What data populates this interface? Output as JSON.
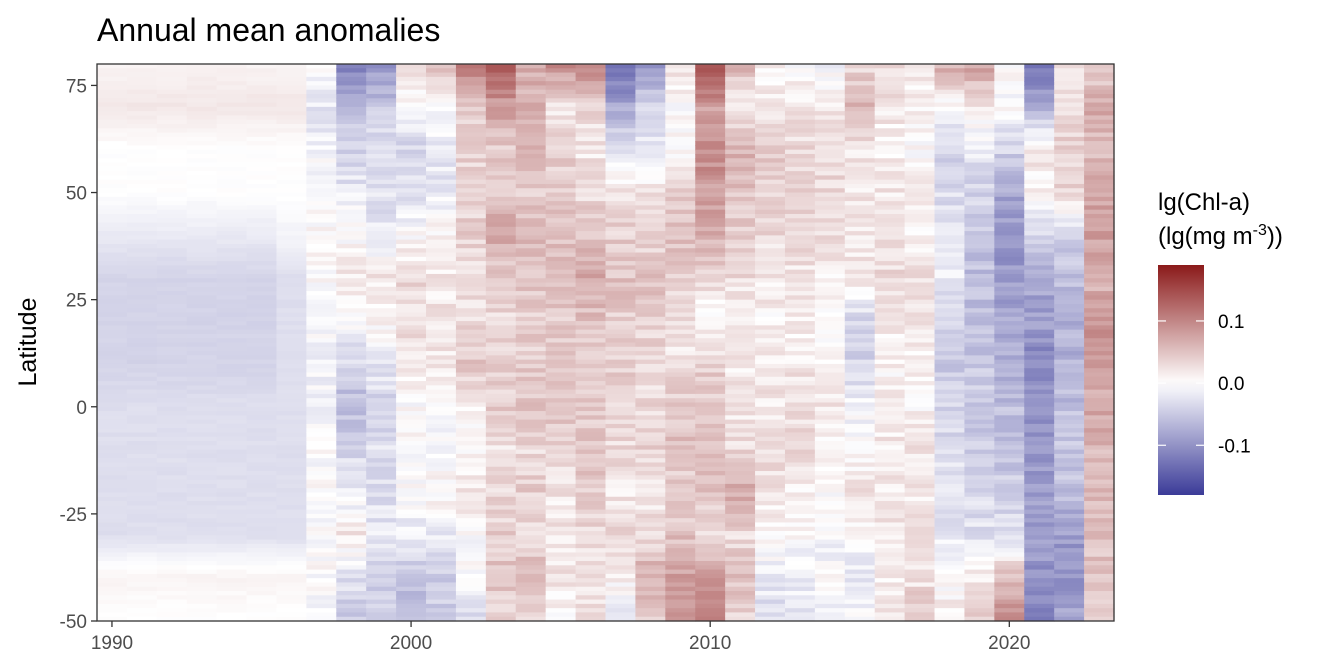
{
  "chart_data": {
    "type": "heatmap",
    "title": "Annual mean anomalies",
    "xlabel": "",
    "ylabel": "Latitude",
    "x_ticks": [
      1990,
      2000,
      2010,
      2020
    ],
    "y_ticks": [
      75,
      50,
      25,
      0,
      -25,
      -50
    ],
    "xlim": [
      1989.5,
      2023.5
    ],
    "ylim": [
      -50,
      80
    ],
    "years": [
      1990,
      1991,
      1992,
      1993,
      1994,
      1995,
      1996,
      1997,
      1998,
      1999,
      2000,
      2001,
      2002,
      2003,
      2004,
      2005,
      2006,
      2007,
      2008,
      2009,
      2010,
      2011,
      2012,
      2013,
      2014,
      2015,
      2016,
      2017,
      2018,
      2019,
      2020,
      2021,
      2022,
      2023
    ],
    "latitude_bands": [
      80,
      70,
      60,
      50,
      40,
      30,
      20,
      10,
      0,
      -10,
      -20,
      -30,
      -40,
      -50
    ],
    "values_note_units": "lg(mg m-3)",
    "anomaly_rows_by_year": [
      [
        0.01,
        0.02,
        0.0,
        0.0,
        -0.02,
        -0.04,
        -0.04,
        -0.04,
        -0.03,
        -0.03,
        -0.03,
        -0.03,
        0.01,
        0.0
      ],
      [
        0.01,
        0.02,
        0.0,
        0.0,
        -0.02,
        -0.04,
        -0.04,
        -0.04,
        -0.03,
        -0.03,
        -0.03,
        -0.03,
        0.01,
        0.0
      ],
      [
        0.01,
        0.02,
        0.0,
        0.0,
        -0.02,
        -0.04,
        -0.04,
        -0.04,
        -0.03,
        -0.03,
        -0.03,
        -0.03,
        0.01,
        0.0
      ],
      [
        0.01,
        0.02,
        0.0,
        0.0,
        -0.02,
        -0.04,
        -0.04,
        -0.04,
        -0.03,
        -0.03,
        -0.03,
        -0.03,
        0.01,
        0.0
      ],
      [
        0.01,
        0.02,
        0.0,
        0.0,
        -0.02,
        -0.04,
        -0.04,
        -0.04,
        -0.03,
        -0.03,
        -0.03,
        -0.03,
        0.01,
        0.0
      ],
      [
        0.01,
        0.02,
        0.0,
        0.0,
        -0.02,
        -0.04,
        -0.04,
        -0.04,
        -0.03,
        -0.03,
        -0.03,
        -0.03,
        0.01,
        0.0
      ],
      [
        0.01,
        0.02,
        0.0,
        0.0,
        -0.01,
        -0.03,
        -0.03,
        -0.03,
        -0.03,
        -0.03,
        -0.03,
        -0.03,
        0.01,
        0.0
      ],
      [
        0.0,
        -0.02,
        -0.01,
        0.0,
        0.0,
        0.0,
        0.0,
        -0.01,
        -0.01,
        0.0,
        0.0,
        0.0,
        0.0,
        -0.01
      ],
      [
        -0.12,
        -0.06,
        -0.04,
        -0.02,
        0.0,
        0.02,
        0.0,
        -0.04,
        -0.06,
        -0.04,
        -0.02,
        0.02,
        -0.03,
        -0.05
      ],
      [
        -0.1,
        -0.05,
        -0.03,
        -0.03,
        -0.02,
        0.02,
        0.01,
        -0.02,
        -0.04,
        -0.03,
        -0.03,
        -0.02,
        -0.05,
        -0.04
      ],
      [
        0.02,
        0.0,
        -0.04,
        -0.03,
        0.0,
        0.03,
        0.03,
        0.02,
        0.0,
        0.0,
        0.0,
        -0.02,
        -0.06,
        -0.05
      ],
      [
        0.06,
        -0.01,
        -0.02,
        -0.02,
        0.01,
        0.02,
        0.02,
        0.02,
        -0.01,
        0.0,
        0.01,
        -0.02,
        -0.05,
        -0.04
      ],
      [
        0.12,
        0.04,
        0.04,
        0.03,
        0.04,
        0.02,
        0.03,
        0.05,
        0.01,
        0.01,
        0.02,
        0.0,
        0.0,
        -0.03
      ],
      [
        0.14,
        0.08,
        0.04,
        0.05,
        0.07,
        0.04,
        0.03,
        0.04,
        0.04,
        0.02,
        0.03,
        0.04,
        0.05,
        0.03
      ],
      [
        0.07,
        0.06,
        0.06,
        0.04,
        0.06,
        0.05,
        0.04,
        0.04,
        0.05,
        0.03,
        0.04,
        0.03,
        0.06,
        0.03
      ],
      [
        0.1,
        0.02,
        0.04,
        0.04,
        0.05,
        0.06,
        0.04,
        0.04,
        0.05,
        0.04,
        0.02,
        0.02,
        0.02,
        0.0
      ],
      [
        0.12,
        0.03,
        0.02,
        0.03,
        0.05,
        0.07,
        0.05,
        0.04,
        0.04,
        0.05,
        0.04,
        0.03,
        0.03,
        0.02
      ],
      [
        -0.14,
        -0.08,
        -0.02,
        0.02,
        0.04,
        0.05,
        0.04,
        0.04,
        0.03,
        0.03,
        0.02,
        0.03,
        0.01,
        -0.02
      ],
      [
        -0.1,
        -0.04,
        -0.02,
        0.02,
        0.03,
        0.05,
        0.04,
        0.03,
        0.03,
        0.04,
        0.02,
        0.03,
        0.07,
        0.04
      ],
      [
        0.03,
        0.0,
        0.0,
        0.04,
        0.05,
        0.04,
        0.03,
        0.02,
        0.05,
        0.05,
        0.04,
        0.05,
        0.08,
        0.1
      ],
      [
        0.16,
        0.08,
        0.1,
        0.08,
        0.07,
        0.03,
        0.0,
        0.04,
        0.04,
        0.05,
        0.05,
        0.03,
        0.08,
        0.11
      ],
      [
        0.06,
        0.02,
        0.06,
        0.05,
        0.04,
        0.03,
        0.01,
        0.02,
        0.02,
        0.03,
        0.07,
        0.03,
        0.05,
        0.03
      ],
      [
        0.01,
        0.02,
        0.04,
        0.04,
        0.03,
        0.02,
        0.01,
        0.02,
        0.02,
        0.03,
        0.02,
        0.01,
        -0.02,
        -0.03
      ],
      [
        0.0,
        0.02,
        0.03,
        0.04,
        0.03,
        0.02,
        0.01,
        0.02,
        0.03,
        0.03,
        0.01,
        0.0,
        -0.02,
        -0.02
      ],
      [
        -0.01,
        0.02,
        0.03,
        0.03,
        0.03,
        0.01,
        0.0,
        0.01,
        0.02,
        0.01,
        0.0,
        -0.01,
        0.0,
        -0.01
      ],
      [
        0.03,
        0.06,
        0.02,
        0.02,
        0.02,
        0.02,
        -0.04,
        -0.04,
        -0.01,
        0.0,
        0.02,
        0.0,
        -0.02,
        0.0
      ],
      [
        0.03,
        0.02,
        0.01,
        0.02,
        0.02,
        0.03,
        0.02,
        0.01,
        0.01,
        0.02,
        0.02,
        0.02,
        0.01,
        0.03
      ],
      [
        0.02,
        0.01,
        0.0,
        0.01,
        0.01,
        0.03,
        0.02,
        0.01,
        0.01,
        0.02,
        0.02,
        0.02,
        0.02,
        0.06
      ],
      [
        0.07,
        0.0,
        -0.04,
        -0.03,
        -0.03,
        -0.02,
        -0.04,
        -0.05,
        -0.04,
        -0.03,
        -0.03,
        -0.02,
        0.0,
        0.02
      ],
      [
        0.08,
        0.02,
        -0.02,
        -0.04,
        -0.05,
        -0.06,
        -0.06,
        -0.05,
        -0.05,
        -0.05,
        -0.03,
        -0.03,
        0.02,
        0.04
      ],
      [
        0.0,
        0.0,
        -0.04,
        -0.08,
        -0.1,
        -0.09,
        -0.08,
        -0.07,
        -0.06,
        -0.06,
        -0.04,
        -0.03,
        0.06,
        0.09
      ],
      [
        -0.12,
        -0.08,
        0.02,
        0.01,
        -0.04,
        -0.08,
        -0.09,
        -0.11,
        -0.1,
        -0.1,
        -0.09,
        -0.09,
        -0.1,
        -0.12
      ],
      [
        0.03,
        0.03,
        0.04,
        0.03,
        -0.04,
        -0.06,
        -0.07,
        -0.07,
        -0.06,
        -0.05,
        -0.06,
        -0.09,
        -0.1,
        -0.08
      ],
      [
        0.03,
        0.07,
        0.05,
        0.07,
        0.08,
        0.06,
        0.09,
        0.08,
        0.07,
        0.06,
        0.06,
        0.05,
        0.05,
        0.03
      ]
    ],
    "legend": {
      "title_line1": "lg(Chl-a)",
      "title_line2_prefix": "(lg(mg m",
      "title_line2_sup": "-3",
      "title_line2_suffix": "))",
      "ticks": [
        0.1,
        0.0,
        -0.1
      ],
      "tick_labels": [
        "0.1",
        "0.0",
        "-0.1"
      ],
      "range": [
        -0.18,
        0.19
      ],
      "low_color": "#3B3B98",
      "mid_color": "#FFFFFF",
      "high_color": "#8B1A1A"
    }
  }
}
